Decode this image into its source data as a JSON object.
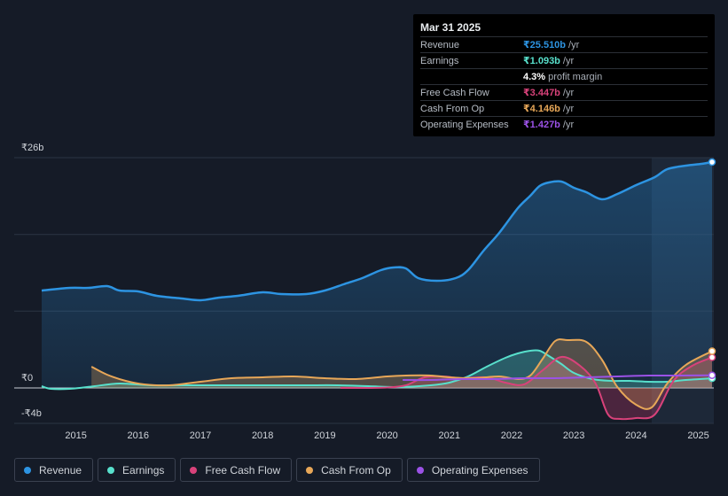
{
  "chart_data": {
    "type": "line",
    "title": "",
    "currency_unit": "₹b",
    "ylim": [
      -4,
      26
    ],
    "y_labels": [
      "₹26b",
      "₹0",
      "-₹4b"
    ],
    "x_ticks": [
      "2015",
      "2016",
      "2017",
      "2018",
      "2019",
      "2020",
      "2021",
      "2022",
      "2023",
      "2024",
      "2025"
    ],
    "forecast_shaded_from": 2024.25,
    "series": [
      {
        "name": "Revenue",
        "color": "#2d94e2",
        "fill": true,
        "points": [
          [
            2014.45,
            11.0
          ],
          [
            2014.9,
            11.3
          ],
          [
            2015.2,
            11.3
          ],
          [
            2015.5,
            11.5
          ],
          [
            2015.7,
            11.0
          ],
          [
            2016.0,
            10.9
          ],
          [
            2016.3,
            10.4
          ],
          [
            2016.7,
            10.1
          ],
          [
            2017.0,
            9.9
          ],
          [
            2017.3,
            10.2
          ],
          [
            2017.6,
            10.4
          ],
          [
            2018.0,
            10.8
          ],
          [
            2018.3,
            10.6
          ],
          [
            2018.7,
            10.6
          ],
          [
            2019.0,
            11.0
          ],
          [
            2019.3,
            11.7
          ],
          [
            2019.6,
            12.4
          ],
          [
            2019.9,
            13.3
          ],
          [
            2020.1,
            13.6
          ],
          [
            2020.3,
            13.5
          ],
          [
            2020.5,
            12.4
          ],
          [
            2020.8,
            12.1
          ],
          [
            2021.1,
            12.4
          ],
          [
            2021.3,
            13.3
          ],
          [
            2021.55,
            15.5
          ],
          [
            2021.8,
            17.5
          ],
          [
            2022.1,
            20.3
          ],
          [
            2022.3,
            21.7
          ],
          [
            2022.45,
            22.8
          ],
          [
            2022.6,
            23.2
          ],
          [
            2022.8,
            23.3
          ],
          [
            2023.0,
            22.6
          ],
          [
            2023.2,
            22.1
          ],
          [
            2023.45,
            21.3
          ],
          [
            2023.7,
            21.9
          ],
          [
            2024.0,
            22.9
          ],
          [
            2024.3,
            23.8
          ],
          [
            2024.5,
            24.7
          ],
          [
            2024.8,
            25.1
          ],
          [
            2025.05,
            25.3
          ],
          [
            2025.22,
            25.5
          ]
        ]
      },
      {
        "name": "Earnings",
        "color": "#58e0cc",
        "fill": true,
        "points": [
          [
            2014.45,
            0.2
          ],
          [
            2014.6,
            -0.1
          ],
          [
            2014.9,
            -0.1
          ],
          [
            2015.3,
            0.2
          ],
          [
            2015.7,
            0.5
          ],
          [
            2016.2,
            0.3
          ],
          [
            2016.7,
            0.3
          ],
          [
            2017.2,
            0.3
          ],
          [
            2017.7,
            0.3
          ],
          [
            2018.2,
            0.3
          ],
          [
            2018.7,
            0.3
          ],
          [
            2019.2,
            0.3
          ],
          [
            2019.7,
            0.2
          ],
          [
            2020.2,
            0.1
          ],
          [
            2020.7,
            0.3
          ],
          [
            2021.0,
            0.6
          ],
          [
            2021.3,
            1.3
          ],
          [
            2021.6,
            2.4
          ],
          [
            2021.9,
            3.4
          ],
          [
            2022.1,
            3.9
          ],
          [
            2022.3,
            4.2
          ],
          [
            2022.45,
            4.2
          ],
          [
            2022.6,
            3.6
          ],
          [
            2022.8,
            2.7
          ],
          [
            2023.0,
            1.7
          ],
          [
            2023.3,
            1.0
          ],
          [
            2023.6,
            0.8
          ],
          [
            2023.9,
            0.8
          ],
          [
            2024.2,
            0.7
          ],
          [
            2024.5,
            0.7
          ],
          [
            2024.8,
            0.9
          ],
          [
            2025.22,
            1.09
          ]
        ]
      },
      {
        "name": "Free Cash Flow",
        "color": "#d8427a",
        "fill": true,
        "points": [
          [
            2019.25,
            0.0
          ],
          [
            2019.6,
            0.0
          ],
          [
            2020.0,
            0.05
          ],
          [
            2020.3,
            0.3
          ],
          [
            2020.6,
            1.2
          ],
          [
            2020.9,
            1.3
          ],
          [
            2021.2,
            1.1
          ],
          [
            2021.6,
            1.2
          ],
          [
            2021.9,
            0.6
          ],
          [
            2022.2,
            0.4
          ],
          [
            2022.5,
            2.0
          ],
          [
            2022.8,
            3.5
          ],
          [
            2023.1,
            2.5
          ],
          [
            2023.35,
            0.5
          ],
          [
            2023.55,
            -3.0
          ],
          [
            2023.75,
            -3.5
          ],
          [
            2024.0,
            -3.4
          ],
          [
            2024.3,
            -3.0
          ],
          [
            2024.6,
            0.8
          ],
          [
            2024.9,
            2.5
          ],
          [
            2025.22,
            3.45
          ]
        ]
      },
      {
        "name": "Cash From Op",
        "color": "#e7a758",
        "fill": true,
        "points": [
          [
            2015.25,
            2.4
          ],
          [
            2015.5,
            1.5
          ],
          [
            2015.8,
            0.8
          ],
          [
            2016.1,
            0.4
          ],
          [
            2016.5,
            0.3
          ],
          [
            2017.0,
            0.7
          ],
          [
            2017.5,
            1.1
          ],
          [
            2018.0,
            1.2
          ],
          [
            2018.5,
            1.3
          ],
          [
            2019.0,
            1.1
          ],
          [
            2019.5,
            1.0
          ],
          [
            2020.0,
            1.3
          ],
          [
            2020.3,
            1.4
          ],
          [
            2020.7,
            1.4
          ],
          [
            2021.0,
            1.2
          ],
          [
            2021.4,
            1.1
          ],
          [
            2021.8,
            1.3
          ],
          [
            2022.1,
            1.0
          ],
          [
            2022.3,
            1.4
          ],
          [
            2022.5,
            3.3
          ],
          [
            2022.7,
            5.3
          ],
          [
            2022.9,
            5.4
          ],
          [
            2023.2,
            5.2
          ],
          [
            2023.45,
            3.2
          ],
          [
            2023.7,
            0.1
          ],
          [
            2024.0,
            -1.9
          ],
          [
            2024.25,
            -2.2
          ],
          [
            2024.5,
            0.5
          ],
          [
            2024.8,
            2.6
          ],
          [
            2025.22,
            4.15
          ]
        ]
      },
      {
        "name": "Operating Expenses",
        "color": "#9b52e6",
        "fill": false,
        "points": [
          [
            2020.25,
            0.9
          ],
          [
            2020.7,
            0.9
          ],
          [
            2021.2,
            1.0
          ],
          [
            2021.7,
            1.0
          ],
          [
            2022.2,
            1.1
          ],
          [
            2022.7,
            1.1
          ],
          [
            2023.2,
            1.2
          ],
          [
            2023.7,
            1.3
          ],
          [
            2024.2,
            1.4
          ],
          [
            2024.7,
            1.4
          ],
          [
            2025.22,
            1.43
          ]
        ]
      }
    ]
  },
  "tooltip": {
    "date": "Mar 31 2025",
    "rows": [
      {
        "label": "Revenue",
        "value": "₹25.510b",
        "unit": "/yr",
        "color": "#2d94e2"
      },
      {
        "label": "Earnings",
        "value": "₹1.093b",
        "unit": "/yr",
        "color": "#58e0cc"
      },
      {
        "label": "",
        "value": "4.3%",
        "unit": "profit margin",
        "color": "#ffffff"
      },
      {
        "label": "Free Cash Flow",
        "value": "₹3.447b",
        "unit": "/yr",
        "color": "#d8427a"
      },
      {
        "label": "Cash From Op",
        "value": "₹4.146b",
        "unit": "/yr",
        "color": "#e7a758"
      },
      {
        "label": "Operating Expenses",
        "value": "₹1.427b",
        "unit": "/yr",
        "color": "#9b52e6"
      }
    ]
  },
  "legend": [
    {
      "label": "Revenue",
      "color": "#2d94e2"
    },
    {
      "label": "Earnings",
      "color": "#58e0cc"
    },
    {
      "label": "Free Cash Flow",
      "color": "#d8427a"
    },
    {
      "label": "Cash From Op",
      "color": "#e7a758"
    },
    {
      "label": "Operating Expenses",
      "color": "#9b52e6"
    }
  ]
}
